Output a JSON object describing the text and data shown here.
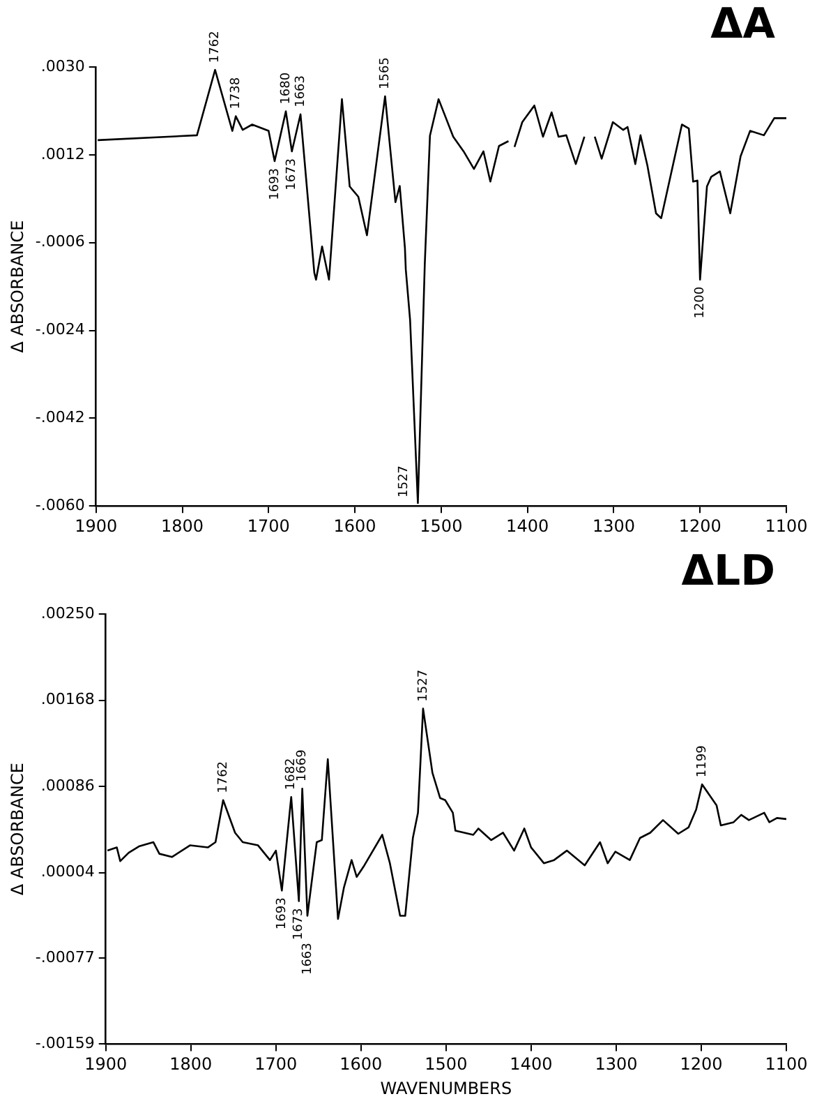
{
  "chart_data": [
    {
      "type": "line",
      "title": "ΔA",
      "ylabel": "Δ ABSORBANCE",
      "xlim": [
        1900,
        1100
      ],
      "xticks": [
        1900,
        1800,
        1700,
        1600,
        1500,
        1400,
        1300,
        1200,
        1100
      ],
      "ylim": [
        -0.006,
        0.003
      ],
      "yticks": [
        {
          "value": -0.006,
          "label": "-.0060"
        },
        {
          "value": -0.0042,
          "label": "-.0042"
        },
        {
          "value": -0.0024,
          "label": "-.0024"
        },
        {
          "value": -0.0006,
          "label": "-.0006"
        },
        {
          "value": 0.0012,
          "label": ".0012"
        },
        {
          "value": 0.003,
          "label": ".0030"
        }
      ],
      "grid": false,
      "legend": false,
      "marker": "none",
      "line_style": "solid",
      "series": [
        {
          "color": "#000000",
          "x": [
            1898,
            1783,
            1762,
            1742,
            1738,
            1730,
            1719,
            1700,
            1693,
            1680,
            1673,
            1663,
            1647,
            1645,
            1638,
            1630,
            1615,
            1606,
            1596,
            1586,
            1565,
            1553,
            1548,
            1542,
            1541,
            1536,
            1527,
            1519,
            1513,
            1503,
            1486,
            1474,
            1462,
            1451,
            1443,
            1433,
            1422,
            1418,
            1415,
            1406,
            1392,
            1382,
            1372,
            1364,
            1355,
            1344,
            1334,
            1330,
            1322,
            1314,
            1301,
            1289,
            1284,
            1275,
            1269,
            1261,
            1251,
            1245,
            1233,
            1221,
            1213,
            1208,
            1203,
            1200,
            1192,
            1187,
            1177,
            1165,
            1153,
            1142,
            1126,
            1114,
            1100
          ],
          "values": [
            0.0015,
            0.0016,
            0.00294,
            0.00169,
            0.00199,
            0.00171,
            0.00182,
            0.00169,
            0.00107,
            0.00209,
            0.00127,
            0.00203,
            -0.00122,
            -0.00136,
            -0.00068,
            -0.00136,
            0.00234,
            0.00055,
            0.00034,
            -0.00045,
            0.0024,
            0.00023,
            0.00056,
            -0.00071,
            -0.00115,
            -0.00219,
            -0.00594,
            -0.00105,
            0.00159,
            0.00234,
            0.00157,
            0.00127,
            0.00091,
            0.00127,
            0.00065,
            0.00138,
            0.00148,
            null,
            0.00136,
            0.00187,
            0.00221,
            0.00157,
            0.00207,
            0.00157,
            0.0016,
            0.00101,
            0.00157,
            null,
            0.00157,
            0.00112,
            0.00187,
            0.00171,
            0.00177,
            0.00101,
            0.0016,
            0.00098,
            0,
            -0.0001,
            0.00086,
            0.00182,
            0.00174,
            0.00065,
            0.00067,
            -0.00136,
            0.00055,
            0.00075,
            0.00086,
            0,
            0.00117,
            0.00169,
            0.0016,
            0.00195,
            0.00195
          ]
        }
      ],
      "annotations": [
        {
          "text": "1762",
          "x": 1762,
          "y": 0.00294
        },
        {
          "text": "1738",
          "x": 1738,
          "y": 0.00199
        },
        {
          "text": "1680",
          "x": 1680,
          "y": 0.00209
        },
        {
          "text": "1663",
          "x": 1663,
          "y": 0.00203
        },
        {
          "text": "1693",
          "x": 1693,
          "y": 0.00107
        },
        {
          "text": "1673",
          "x": 1673,
          "y": 0.00127
        },
        {
          "text": "1565",
          "x": 1565,
          "y": 0.0024
        },
        {
          "text": "1527",
          "x": 1527,
          "y": -0.00594
        },
        {
          "text": "1200",
          "x": 1200,
          "y": -0.00136
        }
      ]
    },
    {
      "type": "line",
      "title": "ΔLD",
      "xlabel": "WAVENUMBERS",
      "ylabel": "Δ ABSORBANCE",
      "xlim": [
        1900,
        1100
      ],
      "xticks": [
        1900,
        1800,
        1700,
        1600,
        1500,
        1400,
        1300,
        1200,
        1100
      ],
      "ylim": [
        -0.00159,
        0.0025
      ],
      "yticks": [
        {
          "value": -0.00159,
          "label": "-.00159"
        },
        {
          "value": -0.00077,
          "label": "-.00077"
        },
        {
          "value": 4e-05,
          "label": ".00004"
        },
        {
          "value": 0.00086,
          "label": ".00086"
        },
        {
          "value": 0.00168,
          "label": ".00168"
        },
        {
          "value": 0.0025,
          "label": ".00250"
        }
      ],
      "grid": false,
      "legend": false,
      "marker": "none",
      "line_style": "solid",
      "series": [
        {
          "color": "#000000",
          "x": [
            1898,
            1887,
            1883,
            1873,
            1861,
            1844,
            1837,
            1822,
            1801,
            1780,
            1771,
            1762,
            1748,
            1739,
            1721,
            1707,
            1700,
            1693,
            1682,
            1673,
            1669,
            1663,
            1652,
            1646,
            1639,
            1627,
            1620,
            1611,
            1605,
            1596,
            1575,
            1566,
            1554,
            1548,
            1539,
            1533,
            1527,
            1516,
            1507,
            1501,
            1492,
            1489,
            1468,
            1462,
            1447,
            1433,
            1420,
            1408,
            1400,
            1385,
            1373,
            1358,
            1337,
            1319,
            1310,
            1301,
            1284,
            1272,
            1260,
            1245,
            1227,
            1215,
            1206,
            1199,
            1182,
            1177,
            1162,
            1153,
            1144,
            1126,
            1120,
            1111,
            1100
          ],
          "values": [
            0.00025,
            0.00028,
            0.00015,
            0.00023,
            0.00029,
            0.00033,
            0.00022,
            0.00019,
            0.0003,
            0.00028,
            0.00033,
            0.00073,
            0.00042,
            0.00033,
            0.0003,
            0.00016,
            0.00025,
            -0.00013,
            0.00076,
            -0.00023,
            0.00084,
            -0.00037,
            0.00033,
            0.00035,
            0.00112,
            -0.0004,
            -0.0001,
            0.00016,
            0,
            0.00011,
            0.0004,
            0.00013,
            -0.00037,
            -0.00037,
            0.00037,
            0.00061,
            0.0016,
            0.00099,
            0.00075,
            0.00073,
            0.00061,
            0.00044,
            0.0004,
            0.00046,
            0.00035,
            0.00042,
            0.00025,
            0.00046,
            0.00028,
            0.00013,
            0.00016,
            0.00025,
            0.00011,
            0.00033,
            0.00013,
            0.00024,
            0.00016,
            0.00037,
            0.00042,
            0.00054,
            0.00041,
            0.00047,
            0.00064,
            0.00088,
            0.00068,
            0.00049,
            0.00052,
            0.00059,
            0.00054,
            0.00061,
            0.00052,
            0.00056,
            0.00055
          ]
        }
      ],
      "annotations": [
        {
          "text": "1762",
          "x": 1762,
          "y": 0.00073
        },
        {
          "text": "1682",
          "x": 1682,
          "y": 0.00076
        },
        {
          "text": "1669",
          "x": 1669,
          "y": 0.00084
        },
        {
          "text": "1693",
          "x": 1693,
          "y": -0.00013
        },
        {
          "text": "1673",
          "x": 1673,
          "y": -0.00023
        },
        {
          "text": "1663",
          "x": 1663,
          "y": -0.00037
        },
        {
          "text": "1527",
          "x": 1527,
          "y": 0.0016
        },
        {
          "text": "1199",
          "x": 1199,
          "y": 0.00088
        }
      ]
    }
  ]
}
